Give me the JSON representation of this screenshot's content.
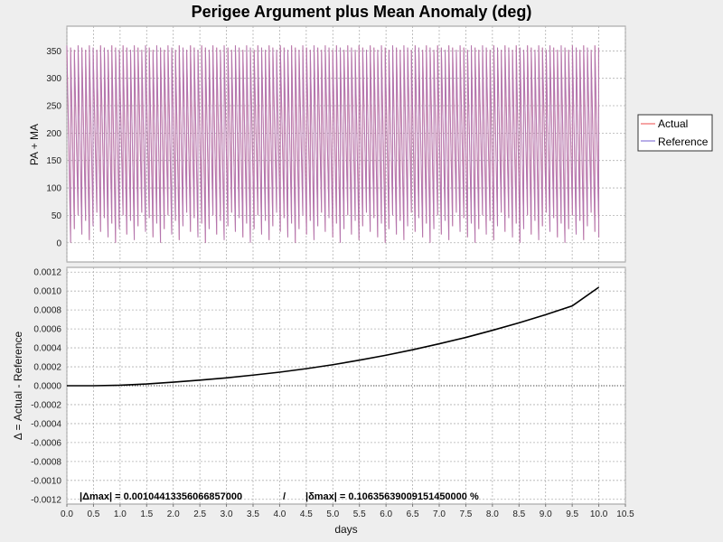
{
  "chart_data": {
    "title": "Perigee Argument plus Mean Anomaly (deg)",
    "xlabel": "days",
    "xlim": [
      0.0,
      10.5
    ],
    "x_ticks": [
      "0.0",
      "0.5",
      "1.0",
      "1.5",
      "2.0",
      "2.5",
      "3.0",
      "3.5",
      "4.0",
      "4.5",
      "5.0",
      "5.5",
      "6.0",
      "6.5",
      "7.0",
      "7.5",
      "8.0",
      "8.5",
      "9.0",
      "9.5",
      "10.0",
      "10.5"
    ],
    "x_tick_values": [
      0.0,
      0.5,
      1.0,
      1.5,
      2.0,
      2.5,
      3.0,
      3.5,
      4.0,
      4.5,
      5.0,
      5.5,
      6.0,
      6.5,
      7.0,
      7.5,
      8.0,
      8.5,
      9.0,
      9.5,
      10.0,
      10.5
    ],
    "grid": true,
    "legend_position": "right",
    "legend": [
      {
        "name": "Actual",
        "color": "#f06868"
      },
      {
        "name": "Reference",
        "color": "#8878d8"
      }
    ],
    "panels": [
      {
        "type": "line",
        "ylabel": "PA + MA",
        "ylim": [
          -35,
          395
        ],
        "y_ticks": [
          "0",
          "50",
          "100",
          "150",
          "200",
          "250",
          "300",
          "350"
        ],
        "y_tick_values": [
          0,
          50,
          100,
          150,
          200,
          250,
          300,
          350
        ],
        "series": [
          {
            "name": "Actual",
            "color": "#f06868",
            "pattern": "sawtooth",
            "x_range": [
              0.0,
              10.0
            ],
            "y_range": [
              0,
              360
            ],
            "period_days": 0.0704,
            "phase_step_deg": 25
          }
        ]
      },
      {
        "type": "line",
        "ylabel": "Δ = Actual - Reference",
        "ylim": [
          -0.00125,
          0.00125
        ],
        "y_ticks": [
          "0.0012",
          "0.0010",
          "0.0008",
          "0.0006",
          "0.0004",
          "0.0002",
          "0.0000",
          "-0.0002",
          "-0.0004",
          "-0.0006",
          "-0.0008",
          "-0.0010",
          "-0.0012"
        ],
        "y_tick_values": [
          0.0012,
          0.001,
          0.0008,
          0.0006,
          0.0004,
          0.0002,
          0.0,
          -0.0002,
          -0.0004,
          -0.0006,
          -0.0008,
          -0.001,
          -0.0012
        ],
        "x": [
          0.0,
          0.5,
          1.0,
          1.5,
          2.0,
          2.5,
          3.0,
          3.5,
          4.0,
          4.5,
          5.0,
          5.5,
          6.0,
          6.5,
          7.0,
          7.5,
          8.0,
          8.5,
          9.0,
          9.5,
          10.0
        ],
        "series": [
          {
            "name": "Δ",
            "color": "#000000",
            "values": [
              0.0,
              0.0,
              5e-06,
              1.8e-05,
              3.8e-05,
              5.9e-05,
              8.3e-05,
              0.000112,
              0.000143,
              0.00018,
              0.000222,
              0.00027,
              0.000322,
              0.00038,
              0.000443,
              0.00051,
              0.000585,
              0.000664,
              0.00075,
              0.000843,
              0.00104
            ]
          }
        ],
        "annotation": {
          "delta_max": "|Δmax| = 0.00104413356066857000",
          "separator": "/",
          "rel_max": "|δmax| = 0.10635639009151450000 %"
        }
      }
    ]
  }
}
